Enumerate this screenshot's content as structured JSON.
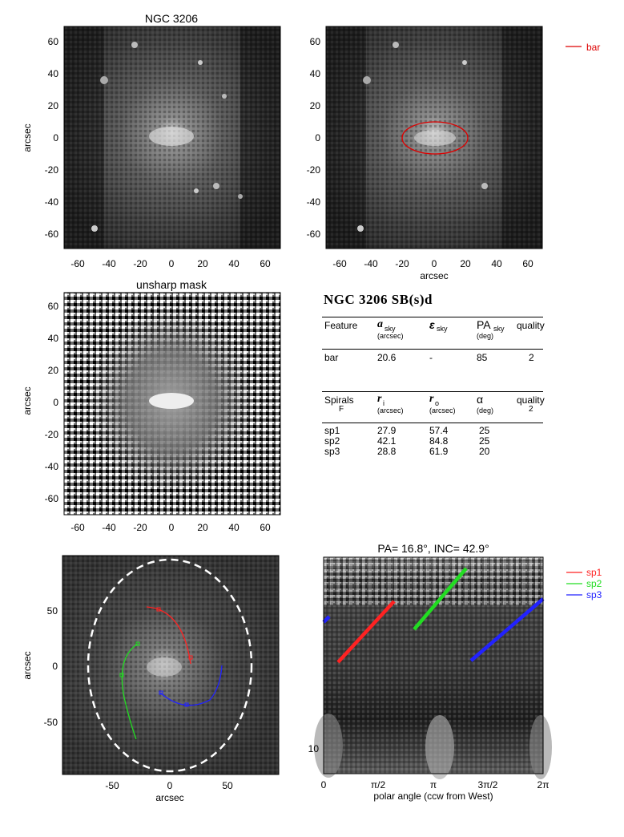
{
  "panels": {
    "image": {
      "title": "NGC 3206",
      "ylabel": "arcsec",
      "xticks": [
        "-60",
        "-40",
        "-20",
        "0",
        "20",
        "40",
        "60"
      ],
      "yticks": [
        "60",
        "40",
        "20",
        "0",
        "-20",
        "-40",
        "-60"
      ]
    },
    "bar_fit": {
      "xlabel": "arcsec",
      "xticks": [
        "-60",
        "-40",
        "-20",
        "0",
        "20",
        "40",
        "60"
      ],
      "yticks": [
        "60",
        "40",
        "20",
        "0",
        "-20",
        "-40",
        "-60"
      ],
      "legend": "bar",
      "legend_color": "#dd0000"
    },
    "unsharp": {
      "title": "unsharp mask",
      "ylabel": "arcsec",
      "xticks": [
        "-60",
        "-40",
        "-20",
        "0",
        "20",
        "40",
        "60"
      ],
      "yticks": [
        "60",
        "40",
        "20",
        "0",
        "-20",
        "-40",
        "-60"
      ]
    },
    "spiral_fit": {
      "xlabel": "arcsec",
      "ylabel": "arcsec",
      "xticks": [
        "-50",
        "0",
        "50"
      ],
      "yticks": [
        "50",
        "0",
        "-50"
      ]
    },
    "polar": {
      "title": "PA=  16.8°, INC=  42.9°",
      "xlabel": "polar angle (ccw from West)",
      "xticks": [
        "0",
        "π/2",
        "π",
        "3π/2",
        "2π"
      ],
      "ytick": "10",
      "legend": [
        "sp1",
        "sp2",
        "sp3"
      ],
      "legend_colors": [
        "#ff2222",
        "#22dd22",
        "#2222ff"
      ]
    }
  },
  "table": {
    "title": "NGC 3206  SB(s)d",
    "bar_header": [
      "Feature",
      "a",
      "sky",
      "(arcsec)",
      "ε",
      "sky",
      "PA",
      "sky",
      "(deg)",
      "quality"
    ],
    "bar_row": [
      "bar",
      "20.6",
      "-",
      "85",
      "2"
    ],
    "spiral_header": [
      "Spirals",
      "F",
      "r",
      "i",
      "(arcsec)",
      "r",
      "o",
      "(arcsec)",
      "α",
      "(deg)",
      "quality",
      "2"
    ],
    "spiral_rows": [
      [
        "sp1",
        "27.9",
        "57.4",
        "25"
      ],
      [
        "sp2",
        "42.1",
        "84.8",
        "25"
      ],
      [
        "sp3",
        "28.8",
        "61.9",
        "20"
      ]
    ]
  }
}
